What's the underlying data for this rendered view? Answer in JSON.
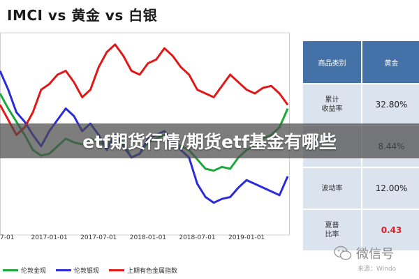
{
  "page": {
    "title": "IMCI vs 黄金 vs 白银",
    "overlay_text": "etf期货行情/期货etf基金有哪些"
  },
  "table": {
    "headers": [
      "商品类别",
      "黄金"
    ],
    "rows": [
      {
        "label": "累计\n收益率",
        "value": "32.80%",
        "color": "#222222"
      },
      {
        "label": "",
        "value": "8.44%",
        "color": "#222222"
      },
      {
        "label": "波动率",
        "value": "12.00%",
        "color": "#222222"
      },
      {
        "label": "夏普\n比率",
        "value": "0.43",
        "color": "#e02020"
      }
    ]
  },
  "watermark": {
    "main": "微信号",
    "sub": "来源：Windo"
  },
  "chart_data": {
    "type": "line",
    "x": [
      "2016-07",
      "2016-08",
      "2016-09",
      "2016-10",
      "2016-11",
      "2016-12",
      "2017-01",
      "2017-02",
      "2017-03",
      "2017-04",
      "2017-05",
      "2017-06",
      "2017-07",
      "2017-08",
      "2017-09",
      "2017-10",
      "2017-11",
      "2017-12",
      "2018-01",
      "2018-02",
      "2018-03",
      "2018-04",
      "2018-05",
      "2018-06",
      "2018-07",
      "2018-08",
      "2018-09",
      "2018-10",
      "2018-11",
      "2018-12",
      "2019-01",
      "2019-02",
      "2019-03",
      "2019-04",
      "2019-05",
      "2019-06"
    ],
    "x_tick_labels": [
      "7-01",
      "2017-01-01",
      "2017-07-01",
      "2018-01-01",
      "2018-07-01",
      "2019-01-01"
    ],
    "x_tick_positions": [
      "2016-07",
      "2017-01",
      "2017-07",
      "2018-01",
      "2018-07",
      "2019-01"
    ],
    "ylim": [
      0,
      100
    ],
    "grid": false,
    "legend_position": "bottom",
    "series": [
      {
        "name": "伦敦金现",
        "color": "#1ea83c",
        "values": [
          70,
          62,
          55,
          48,
          40,
          37,
          38,
          42,
          46,
          44,
          43,
          46,
          44,
          42,
          48,
          44,
          36,
          38,
          44,
          46,
          48,
          45,
          42,
          40,
          35,
          30,
          29,
          31,
          30,
          36,
          40,
          42,
          46,
          48,
          52,
          62
        ]
      },
      {
        "name": "伦敦银现",
        "color": "#2b2bd8",
        "values": [
          82,
          72,
          60,
          55,
          48,
          42,
          50,
          56,
          62,
          58,
          50,
          54,
          48,
          40,
          48,
          42,
          36,
          38,
          46,
          48,
          50,
          45,
          40,
          36,
          22,
          15,
          12,
          14,
          15,
          20,
          24,
          22,
          20,
          18,
          16,
          26
        ]
      },
      {
        "name": "上期有色金属指数",
        "color": "#e01818",
        "values": [
          64,
          56,
          48,
          52,
          60,
          72,
          75,
          80,
          82,
          76,
          68,
          72,
          84,
          92,
          96,
          90,
          82,
          80,
          86,
          88,
          94,
          90,
          84,
          80,
          72,
          70,
          68,
          74,
          80,
          76,
          72,
          70,
          73,
          74,
          70,
          64
        ]
      }
    ]
  }
}
